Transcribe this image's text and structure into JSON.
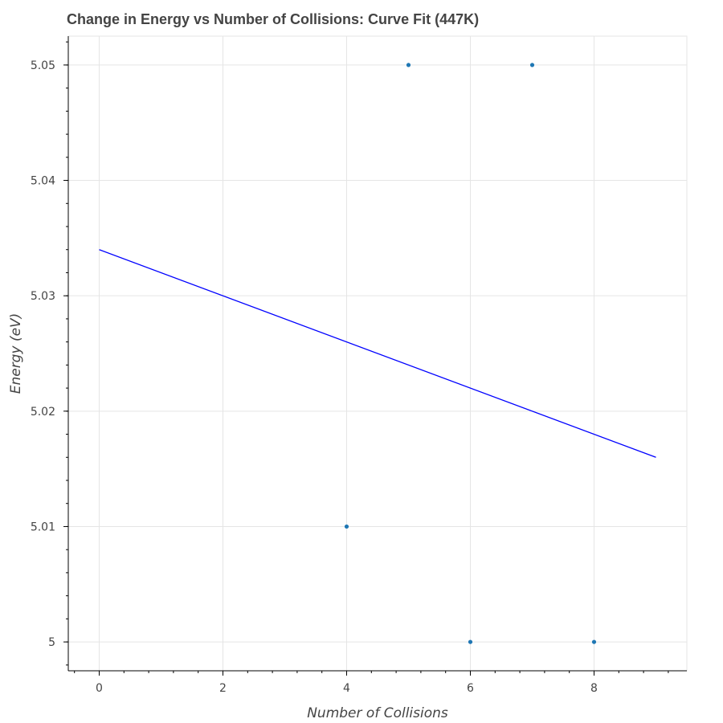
{
  "chart_data": {
    "type": "scatter",
    "title": "Change in Energy vs Number of Collisions: Curve Fit (447K)",
    "xlabel": "Number of Collisions",
    "ylabel": "Energy (eV)",
    "xlim": [
      -0.5,
      9.5
    ],
    "ylim": [
      4.9975,
      5.0525
    ],
    "x_ticks": [
      0,
      2,
      4,
      6,
      8
    ],
    "x_tick_labels": [
      "0",
      "2",
      "4",
      "6",
      "8"
    ],
    "y_ticks": [
      5.0,
      5.01,
      5.02,
      5.03,
      5.04,
      5.05
    ],
    "y_tick_labels": [
      "5",
      "5.01",
      "5.02",
      "5.03",
      "5.04",
      "5.05"
    ],
    "grid": true,
    "series": [
      {
        "kind": "scatter",
        "color": "#1f77b4",
        "x": [
          4,
          5,
          6,
          7,
          8
        ],
        "y": [
          5.01,
          5.05,
          5.0,
          5.05,
          5.0
        ]
      },
      {
        "kind": "line",
        "color": "#0000ff",
        "x": [
          0,
          9
        ],
        "y": [
          5.034,
          5.016
        ]
      }
    ]
  }
}
